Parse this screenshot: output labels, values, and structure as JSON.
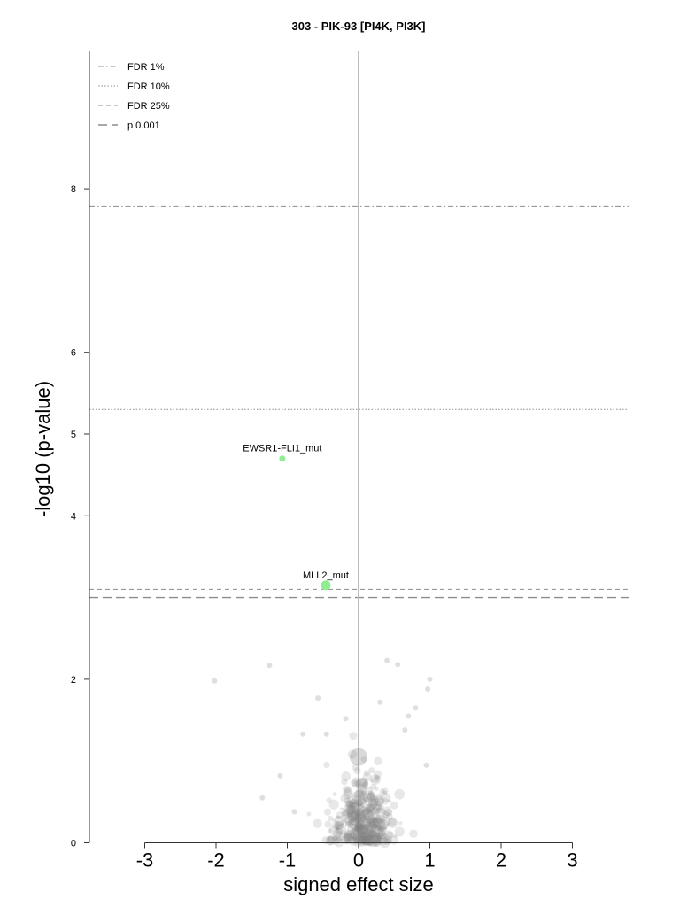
{
  "chart_data": {
    "type": "scatter",
    "title": "303 - PIK-93 [PI4K, PI3K]",
    "xlabel": "signed effect size",
    "ylabel": "-log10 (p-value)",
    "xlim": [
      -3.8,
      3.8
    ],
    "ylim": [
      0,
      9.7
    ],
    "x_ticks": [
      -3,
      -2,
      -1,
      0,
      1,
      2,
      3
    ],
    "y_ticks": [
      0,
      2,
      4,
      5,
      6,
      8
    ],
    "grid": false,
    "legend_position": "top-left",
    "thresholds": [
      {
        "name": "FDR 1%",
        "y": 7.78,
        "style": "dashdot"
      },
      {
        "name": "FDR 10%",
        "y": 5.3,
        "style": "dotted"
      },
      {
        "name": "FDR 25%",
        "y": 3.1,
        "style": "dashed"
      },
      {
        "name": "p 0.001",
        "y": 3.0,
        "style": "longdash"
      }
    ],
    "highlighted": [
      {
        "label": "EWSR1-FLI1_mut",
        "x": -1.07,
        "y": 4.7,
        "size": 5,
        "color": "#90ee90"
      },
      {
        "label": "MLL2_mut",
        "x": -0.46,
        "y": 3.15,
        "size": 9,
        "color": "#90ee90"
      }
    ],
    "background_color": "#808080"
  }
}
